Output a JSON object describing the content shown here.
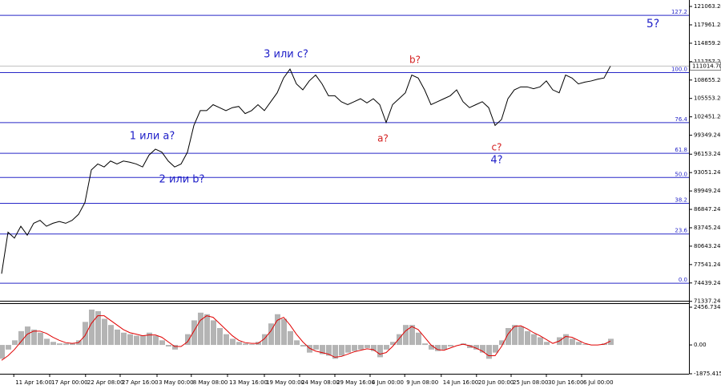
{
  "chart_data": [
    {
      "type": "line",
      "color": "#000000",
      "values": [
        76000,
        83000,
        82000,
        84000,
        82500,
        84500,
        85000,
        84000,
        84500,
        84800,
        84500,
        85000,
        86000,
        88000,
        93500,
        94500,
        94000,
        95000,
        94500,
        95000,
        94800,
        94500,
        94000,
        96000,
        97000,
        96500,
        95000,
        94000,
        94500,
        96500,
        101000,
        103500,
        103500,
        104500,
        104000,
        103500,
        104000,
        104200,
        103000,
        103500,
        104500,
        103500,
        105000,
        106500,
        109000,
        110500,
        108000,
        107000,
        108500,
        109500,
        108000,
        106000,
        106000,
        105000,
        104500,
        105000,
        105500,
        104800,
        105500,
        104500,
        101500,
        104500,
        105500,
        106500,
        109500,
        109000,
        107000,
        104500,
        105000,
        105500,
        106000,
        107000,
        105000,
        104000,
        104500,
        105000,
        104000,
        101000,
        102000,
        105500,
        107000,
        107500,
        107500,
        107200,
        107500,
        108500,
        107000,
        106500,
        109500,
        109000,
        108000,
        108300,
        108500,
        108800,
        109000,
        111000
      ],
      "xlim": [
        0,
        107
      ],
      "ylim": [
        71300,
        122150
      ],
      "yticks": [
        121063.24,
        117961.24,
        114859.24,
        111757.24,
        108655.24,
        105553.24,
        102451.24,
        99349.24,
        96153.24,
        93051.24,
        89949.24,
        86847.24,
        83745.24,
        80643.24,
        77541.24,
        74439.24,
        71337.24
      ],
      "last_price": {
        "value": 111014.7,
        "label": "111014.70"
      },
      "levels": [
        {
          "name": "127.2",
          "value": 119567
        },
        {
          "name": "100.0",
          "value": 109907
        },
        {
          "name": "76.4",
          "value": 101471
        },
        {
          "name": "61.8",
          "value": 96300
        },
        {
          "name": "50.0",
          "value": 92220
        },
        {
          "name": "38.2",
          "value": 87865
        },
        {
          "name": "23.6",
          "value": 82694
        },
        {
          "name": "0.0",
          "value": 74393
        }
      ],
      "level_color": "#2828c8",
      "annotations": [
        {
          "text": "5?",
          "color": "#1e1ec8"
        },
        {
          "text": "3 или с?",
          "color": "#1e1ec8"
        },
        {
          "text": "b?",
          "color": "#d42020"
        },
        {
          "text": "1 или а?",
          "color": "#1e1ec8"
        },
        {
          "text": "a?",
          "color": "#d42020"
        },
        {
          "text": "c?",
          "color": "#d42020"
        },
        {
          "text": "4?",
          "color": "#1e1ec8"
        },
        {
          "text": "2 или b?",
          "color": "#1e1ec8"
        }
      ]
    },
    {
      "type": "bar",
      "series": [
        {
          "name": "MACD",
          "color": "#b4b4b4",
          "values": [
            -900,
            -300,
            300,
            900,
            1200,
            1000,
            800,
            400,
            200,
            100,
            100,
            100,
            300,
            1500,
            2300,
            2200,
            1700,
            1300,
            1000,
            800,
            700,
            600,
            600,
            800,
            600,
            300,
            -100,
            -300,
            0,
            700,
            1600,
            2100,
            2000,
            1600,
            1100,
            700,
            400,
            200,
            100,
            50,
            200,
            700,
            1400,
            2000,
            1700,
            900,
            300,
            -100,
            -500,
            -300,
            -600,
            -700,
            -900,
            -700,
            -500,
            -400,
            -300,
            -200,
            -400,
            -800,
            -300,
            200,
            700,
            1300,
            1300,
            800,
            100,
            -300,
            -400,
            -300,
            -100,
            0,
            100,
            -200,
            -300,
            -500,
            -900,
            -500,
            300,
            1100,
            1300,
            1200,
            900,
            700,
            500,
            200,
            0,
            500,
            700,
            400,
            200,
            50,
            0,
            0,
            100,
            400
          ]
        },
        {
          "name": "Signal",
          "color": "#e00000",
          "values": [
            -1000,
            -700,
            -300,
            200,
            700,
            900,
            900,
            750,
            500,
            300,
            150,
            100,
            150,
            600,
            1400,
            1900,
            1900,
            1600,
            1300,
            1000,
            800,
            700,
            600,
            650,
            650,
            500,
            200,
            -100,
            -100,
            200,
            900,
            1600,
            1900,
            1800,
            1400,
            1000,
            600,
            300,
            150,
            100,
            100,
            400,
            900,
            1600,
            1800,
            1300,
            700,
            200,
            -200,
            -400,
            -500,
            -600,
            -800,
            -750,
            -600,
            -450,
            -350,
            -250,
            -300,
            -600,
            -500,
            -100,
            400,
            900,
            1200,
            1000,
            500,
            0,
            -300,
            -350,
            -200,
            -50,
            50,
            -50,
            -200,
            -400,
            -700,
            -700,
            -100,
            700,
            1200,
            1250,
            1050,
            800,
            600,
            350,
            100,
            250,
            550,
            500,
            300,
            100,
            0,
            0,
            50,
            250
          ]
        }
      ],
      "xlim": [
        0,
        107
      ],
      "ylim": [
        -1875.415,
        2770
      ],
      "yticks": [
        2456.734,
        {
          "value": 0,
          "label": "0.00"
        },
        -1875.415
      ],
      "xticks": [
        {
          "value": 1.9,
          "label": "11 Apr 16:00"
        },
        {
          "value": 7.5,
          "label": "17 Apr 00:00"
        },
        {
          "value": 13.1,
          "label": "22 Apr 08:00"
        },
        {
          "value": 18.5,
          "label": "27 Apr 16:00"
        },
        {
          "value": 24.25,
          "label": "3 May 00:00"
        },
        {
          "value": 29.6,
          "label": "8 May 08:00"
        },
        {
          "value": 35.25,
          "label": "13 May 16:00"
        },
        {
          "value": 41,
          "label": "19 May 00:00"
        },
        {
          "value": 46.5,
          "label": "24 May 08:00"
        },
        {
          "value": 52,
          "label": "29 May 16:00"
        },
        {
          "value": 57.5,
          "label": "4 Jun 00:00"
        },
        {
          "value": 62.9,
          "label": "9 Jun 08:00"
        },
        {
          "value": 68.6,
          "label": "14 Jun 16:00"
        },
        {
          "value": 74.1,
          "label": "20 Jun 00:00"
        },
        {
          "value": 79.5,
          "label": "25 Jun 08:00"
        },
        {
          "value": 85,
          "label": "30 Jun 16:00"
        },
        {
          "value": 90.5,
          "label": "6 Jul 00:00"
        }
      ]
    }
  ]
}
